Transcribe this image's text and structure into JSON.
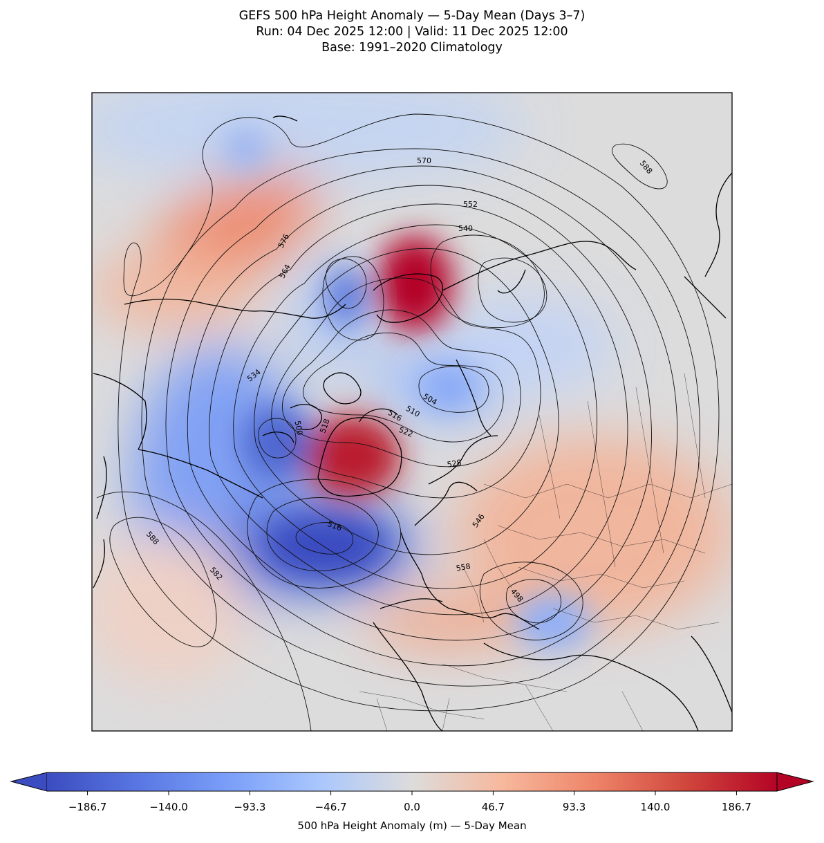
{
  "title": {
    "line1": "GEFS 500 hPa Height Anomaly — 5-Day Mean (Days 3–7)",
    "line2": "Run: 04 Dec 2025 12:00 | Valid: 11 Dec 2025 12:00",
    "line3": "Base: 1991–2020 Climatology"
  },
  "colorbar": {
    "label": "500 hPa Height Anomaly (m) — 5-Day Mean",
    "ticks": [
      "−186.7",
      "−140.0",
      "−93.3",
      "−46.7",
      "0.0",
      "46.7",
      "93.3",
      "140.0",
      "186.7"
    ],
    "min": -210,
    "max": 210,
    "colormap": "coolwarm",
    "extend": "both"
  },
  "contour_labels": {
    "c570": "570",
    "c552": "552",
    "c540": "540",
    "c576": "576",
    "c564": "564",
    "c534": "534",
    "c504": "504",
    "c510": "510",
    "c516": "516",
    "c522": "522",
    "c528": "528",
    "c546": "546",
    "c558": "558",
    "c588a": "588",
    "c588b": "588",
    "c582": "582",
    "c516b": "516",
    "c500": "500",
    "c518": "518",
    "c498": "498"
  },
  "colors": {
    "strong_negative": "#3b4cc0",
    "neutral": "#dddcdc",
    "strong_positive": "#b40426"
  }
}
